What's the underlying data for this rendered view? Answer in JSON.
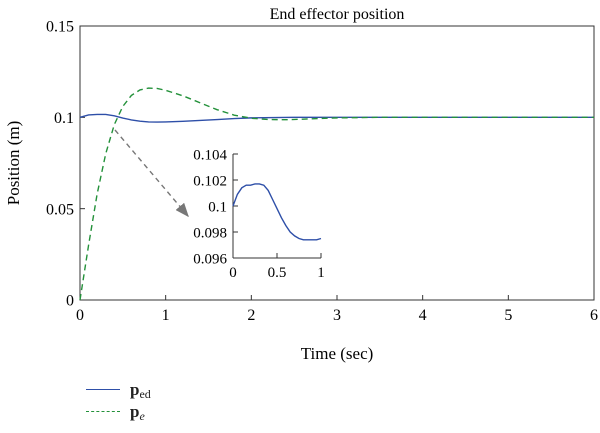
{
  "chart_data": [
    {
      "type": "line",
      "title": "End effector position",
      "xlabel": "Time (sec)",
      "ylabel": "Position (m)",
      "xlim": [
        0,
        6
      ],
      "ylim": [
        0,
        0.15
      ],
      "xticks": [
        "0",
        "1",
        "2",
        "3",
        "4",
        "5",
        "6"
      ],
      "yticks": [
        "0",
        "0.05",
        "0.1",
        "0.15"
      ],
      "grid": false,
      "legend_position": "bottom-left, below plot",
      "series": [
        {
          "name_main": "p",
          "name_sub": "ed",
          "color": "#2e4fa8",
          "style": "solid",
          "x": [
            0,
            0.1,
            0.2,
            0.3,
            0.4,
            0.5,
            0.6,
            0.7,
            0.8,
            0.9,
            1.0,
            1.2,
            1.4,
            1.6,
            1.8,
            2.0,
            2.5,
            3.0,
            3.5,
            4.0,
            4.5,
            5.0,
            5.5,
            6.0
          ],
          "y": [
            0.1,
            0.1013,
            0.1016,
            0.1016,
            0.1008,
            0.0996,
            0.0986,
            0.0979,
            0.0975,
            0.0974,
            0.0975,
            0.0978,
            0.0983,
            0.0988,
            0.0993,
            0.0997,
            0.1,
            0.1,
            0.1,
            0.1,
            0.1,
            0.1,
            0.1,
            0.1
          ]
        },
        {
          "name_main": "p",
          "name_sub": "e",
          "color": "#23913a",
          "style": "dashed",
          "x": [
            0,
            0.1,
            0.2,
            0.3,
            0.4,
            0.5,
            0.6,
            0.7,
            0.8,
            0.9,
            1.0,
            1.2,
            1.4,
            1.6,
            1.8,
            2.0,
            2.2,
            2.4,
            2.6,
            2.8,
            3.0,
            3.5,
            4.0,
            5.0,
            6.0
          ],
          "y": [
            0,
            0.03,
            0.058,
            0.08,
            0.096,
            0.106,
            0.112,
            0.115,
            0.116,
            0.1158,
            0.1148,
            0.1118,
            0.108,
            0.1042,
            0.1012,
            0.0995,
            0.0988,
            0.0987,
            0.099,
            0.0994,
            0.0997,
            0.1,
            0.1,
            0.1,
            0.1
          ]
        }
      ]
    },
    {
      "type": "line",
      "title": "",
      "xlim": [
        0,
        1
      ],
      "ylim": [
        0.096,
        0.104
      ],
      "xticks": [
        "0",
        "0.5",
        "1"
      ],
      "yticks": [
        "0.096",
        "0.098",
        "0.1",
        "0.102",
        "0.104"
      ],
      "grid": false,
      "series": [
        {
          "color": "#2e4fa8",
          "style": "solid",
          "x": [
            0,
            0.05,
            0.1,
            0.15,
            0.2,
            0.25,
            0.3,
            0.35,
            0.4,
            0.45,
            0.5,
            0.55,
            0.6,
            0.65,
            0.7,
            0.75,
            0.8,
            0.85,
            0.9,
            0.95,
            1.0
          ],
          "y": [
            0.1,
            0.1009,
            0.1014,
            0.1016,
            0.1016,
            0.1017,
            0.1017,
            0.1016,
            0.1012,
            0.1005,
            0.0998,
            0.0991,
            0.0985,
            0.098,
            0.0977,
            0.0975,
            0.0974,
            0.0974,
            0.0974,
            0.0974,
            0.0975
          ]
        }
      ]
    }
  ]
}
